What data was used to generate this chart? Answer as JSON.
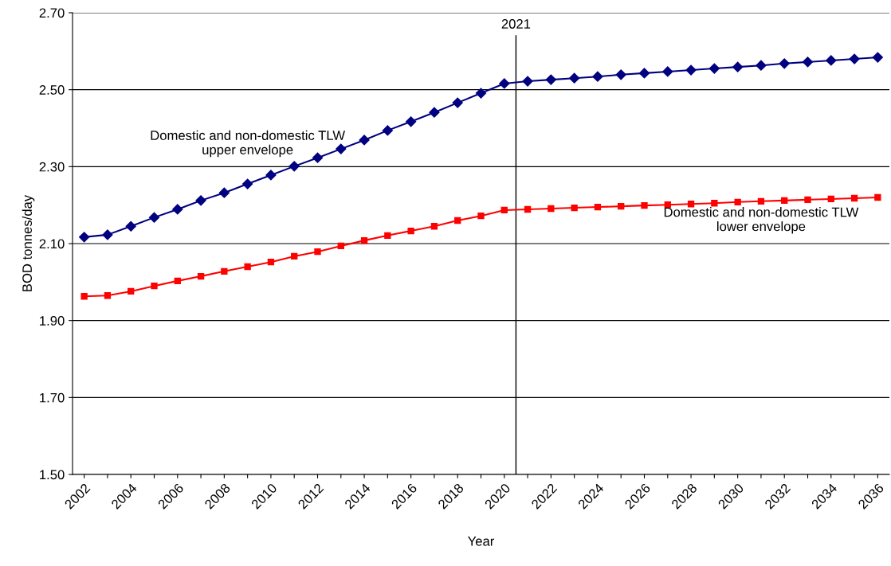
{
  "chart_data": {
    "type": "line",
    "xlabel": "Year",
    "ylabel": "BOD tonnes/day",
    "x": [
      2002,
      2003,
      2004,
      2005,
      2006,
      2007,
      2008,
      2009,
      2010,
      2011,
      2012,
      2013,
      2014,
      2015,
      2016,
      2017,
      2018,
      2019,
      2020,
      2021,
      2022,
      2023,
      2024,
      2025,
      2026,
      2027,
      2028,
      2029,
      2030,
      2031,
      2032,
      2033,
      2034,
      2035,
      2036
    ],
    "series": [
      {
        "name": "Domestic and non-domestic TLW\nupper envelope",
        "color": "#000080",
        "marker": "diamond",
        "values": [
          2.117,
          2.123,
          2.145,
          2.168,
          2.189,
          2.212,
          2.232,
          2.255,
          2.278,
          2.301,
          2.323,
          2.346,
          2.369,
          2.394,
          2.417,
          2.441,
          2.466,
          2.491,
          2.516,
          2.522,
          2.526,
          2.53,
          2.534,
          2.539,
          2.543,
          2.547,
          2.551,
          2.555,
          2.559,
          2.563,
          2.568,
          2.572,
          2.576,
          2.58,
          2.584
        ]
      },
      {
        "name": "Domestic and non-domestic TLW\nlower envelope",
        "color": "#ff0000",
        "marker": "square",
        "values": [
          1.963,
          1.965,
          1.976,
          1.99,
          2.003,
          2.015,
          2.028,
          2.04,
          2.052,
          2.067,
          2.079,
          2.094,
          2.108,
          2.121,
          2.133,
          2.145,
          2.16,
          2.172,
          2.187,
          2.189,
          2.191,
          2.193,
          2.195,
          2.197,
          2.199,
          2.201,
          2.203,
          2.205,
          2.208,
          2.21,
          2.212,
          2.214,
          2.216,
          2.218,
          2.22
        ]
      }
    ],
    "xlim": [
      2001.5,
      2036.5
    ],
    "xticks": [
      {
        "value": 2002,
        "label": "2002"
      },
      {
        "value": 2003,
        "label": null
      },
      {
        "value": 2004,
        "label": "2004"
      },
      {
        "value": 2005,
        "label": null
      },
      {
        "value": 2006,
        "label": "2006"
      },
      {
        "value": 2007,
        "label": null
      },
      {
        "value": 2008,
        "label": "2008"
      },
      {
        "value": 2009,
        "label": null
      },
      {
        "value": 2010,
        "label": "2010"
      },
      {
        "value": 2011,
        "label": null
      },
      {
        "value": 2012,
        "label": "2012"
      },
      {
        "value": 2013,
        "label": null
      },
      {
        "value": 2014,
        "label": "2014"
      },
      {
        "value": 2015,
        "label": null
      },
      {
        "value": 2016,
        "label": "2016"
      },
      {
        "value": 2017,
        "label": null
      },
      {
        "value": 2018,
        "label": "2018"
      },
      {
        "value": 2019,
        "label": null
      },
      {
        "value": 2020,
        "label": "2020"
      },
      {
        "value": 2021,
        "label": null
      },
      {
        "value": 2022,
        "label": "2022"
      },
      {
        "value": 2023,
        "label": null
      },
      {
        "value": 2024,
        "label": "2024"
      },
      {
        "value": 2025,
        "label": null
      },
      {
        "value": 2026,
        "label": "2026"
      },
      {
        "value": 2027,
        "label": null
      },
      {
        "value": 2028,
        "label": "2028"
      },
      {
        "value": 2029,
        "label": null
      },
      {
        "value": 2030,
        "label": "2030"
      },
      {
        "value": 2031,
        "label": null
      },
      {
        "value": 2032,
        "label": "2032"
      },
      {
        "value": 2033,
        "label": null
      },
      {
        "value": 2034,
        "label": "2034"
      },
      {
        "value": 2035,
        "label": null
      },
      {
        "value": 2036,
        "label": "2036"
      }
    ],
    "ylim": [
      1.5,
      2.7
    ],
    "yticks": [
      {
        "value": 1.5,
        "label": "1.50"
      },
      {
        "value": 1.7,
        "label": "1.70"
      },
      {
        "value": 1.9,
        "label": "1.90"
      },
      {
        "value": 2.1,
        "label": "2.10"
      },
      {
        "value": 2.3,
        "label": "2.30"
      },
      {
        "value": 2.5,
        "label": "2.50"
      },
      {
        "value": 2.7,
        "label": "2.70"
      }
    ],
    "grid": "y",
    "legend": false,
    "line_style": "solid",
    "ref_lines": [
      {
        "axis": "x",
        "value": 2020.5,
        "label": "2021",
        "color": "#000000"
      }
    ]
  }
}
